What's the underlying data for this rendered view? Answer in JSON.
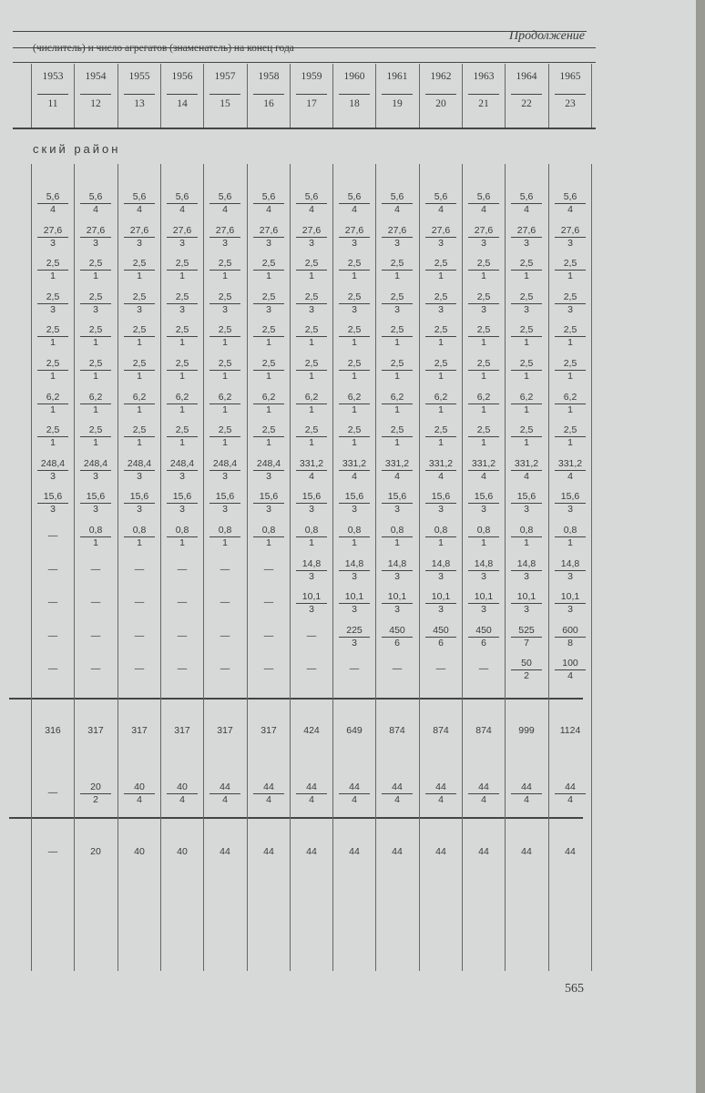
{
  "header": {
    "continuation": "Продолжение",
    "subheading": "(числитель) и число агрегатов (знаменатель) на конец года",
    "years": [
      "1953",
      "1954",
      "1955",
      "1956",
      "1957",
      "1958",
      "1959",
      "1960",
      "1961",
      "1962",
      "1963",
      "1964",
      "1965"
    ],
    "column_numbers": [
      "11",
      "12",
      "13",
      "14",
      "15",
      "16",
      "17",
      "18",
      "19",
      "20",
      "21",
      "22",
      "23"
    ]
  },
  "section_title": "ский район",
  "rows": [
    [
      [
        "5,6",
        "4"
      ],
      [
        "5,6",
        "4"
      ],
      [
        "5,6",
        "4"
      ],
      [
        "5,6",
        "4"
      ],
      [
        "5,6",
        "4"
      ],
      [
        "5,6",
        "4"
      ],
      [
        "5,6",
        "4"
      ],
      [
        "5,6",
        "4"
      ],
      [
        "5,6",
        "4"
      ],
      [
        "5,6",
        "4"
      ],
      [
        "5,6",
        "4"
      ],
      [
        "5,6",
        "4"
      ],
      [
        "5,6",
        "4"
      ]
    ],
    [
      [
        "27,6",
        "3"
      ],
      [
        "27,6",
        "3"
      ],
      [
        "27,6",
        "3"
      ],
      [
        "27,6",
        "3"
      ],
      [
        "27,6",
        "3"
      ],
      [
        "27,6",
        "3"
      ],
      [
        "27,6",
        "3"
      ],
      [
        "27,6",
        "3"
      ],
      [
        "27,6",
        "3"
      ],
      [
        "27,6",
        "3"
      ],
      [
        "27,6",
        "3"
      ],
      [
        "27,6",
        "3"
      ],
      [
        "27,6",
        "3"
      ]
    ],
    [
      [
        "2,5",
        "1"
      ],
      [
        "2,5",
        "1"
      ],
      [
        "2,5",
        "1"
      ],
      [
        "2,5",
        "1"
      ],
      [
        "2,5",
        "1"
      ],
      [
        "2,5",
        "1"
      ],
      [
        "2,5",
        "1"
      ],
      [
        "2,5",
        "1"
      ],
      [
        "2,5",
        "1"
      ],
      [
        "2,5",
        "1"
      ],
      [
        "2,5",
        "1"
      ],
      [
        "2,5",
        "1"
      ],
      [
        "2,5",
        "1"
      ]
    ],
    [
      [
        "2,5",
        "3"
      ],
      [
        "2,5",
        "3"
      ],
      [
        "2,5",
        "3"
      ],
      [
        "2,5",
        "3"
      ],
      [
        "2,5",
        "3"
      ],
      [
        "2,5",
        "3"
      ],
      [
        "2,5",
        "3"
      ],
      [
        "2,5",
        "3"
      ],
      [
        "2,5",
        "3"
      ],
      [
        "2,5",
        "3"
      ],
      [
        "2,5",
        "3"
      ],
      [
        "2,5",
        "3"
      ],
      [
        "2,5",
        "3"
      ]
    ],
    [
      [
        "2,5",
        "1"
      ],
      [
        "2,5",
        "1"
      ],
      [
        "2,5",
        "1"
      ],
      [
        "2,5",
        "1"
      ],
      [
        "2,5",
        "1"
      ],
      [
        "2,5",
        "1"
      ],
      [
        "2,5",
        "1"
      ],
      [
        "2,5",
        "1"
      ],
      [
        "2,5",
        "1"
      ],
      [
        "2,5",
        "1"
      ],
      [
        "2,5",
        "1"
      ],
      [
        "2,5",
        "1"
      ],
      [
        "2,5",
        "1"
      ]
    ],
    [
      [
        "2,5",
        "1"
      ],
      [
        "2,5",
        "1"
      ],
      [
        "2,5",
        "1"
      ],
      [
        "2,5",
        "1"
      ],
      [
        "2,5",
        "1"
      ],
      [
        "2,5",
        "1"
      ],
      [
        "2,5",
        "1"
      ],
      [
        "2,5",
        "1"
      ],
      [
        "2,5",
        "1"
      ],
      [
        "2,5",
        "1"
      ],
      [
        "2,5",
        "1"
      ],
      [
        "2,5",
        "1"
      ],
      [
        "2,5",
        "1"
      ]
    ],
    [
      [
        "6,2",
        "1"
      ],
      [
        "6,2",
        "1"
      ],
      [
        "6,2",
        "1"
      ],
      [
        "6,2",
        "1"
      ],
      [
        "6,2",
        "1"
      ],
      [
        "6,2",
        "1"
      ],
      [
        "6,2",
        "1"
      ],
      [
        "6,2",
        "1"
      ],
      [
        "6,2",
        "1"
      ],
      [
        "6,2",
        "1"
      ],
      [
        "6,2",
        "1"
      ],
      [
        "6,2",
        "1"
      ],
      [
        "6,2",
        "1"
      ]
    ],
    [
      [
        "2,5",
        "1"
      ],
      [
        "2,5",
        "1"
      ],
      [
        "2,5",
        "1"
      ],
      [
        "2,5",
        "1"
      ],
      [
        "2,5",
        "1"
      ],
      [
        "2,5",
        "1"
      ],
      [
        "2,5",
        "1"
      ],
      [
        "2,5",
        "1"
      ],
      [
        "2,5",
        "1"
      ],
      [
        "2,5",
        "1"
      ],
      [
        "2,5",
        "1"
      ],
      [
        "2,5",
        "1"
      ],
      [
        "2,5",
        "1"
      ]
    ],
    [
      [
        "248,4",
        "3"
      ],
      [
        "248,4",
        "3"
      ],
      [
        "248,4",
        "3"
      ],
      [
        "248,4",
        "3"
      ],
      [
        "248,4",
        "3"
      ],
      [
        "248,4",
        "3"
      ],
      [
        "331,2",
        "4"
      ],
      [
        "331,2",
        "4"
      ],
      [
        "331,2",
        "4"
      ],
      [
        "331,2",
        "4"
      ],
      [
        "331,2",
        "4"
      ],
      [
        "331,2",
        "4"
      ],
      [
        "331,2",
        "4"
      ]
    ],
    [
      [
        "15,6",
        "3"
      ],
      [
        "15,6",
        "3"
      ],
      [
        "15,6",
        "3"
      ],
      [
        "15,6",
        "3"
      ],
      [
        "15,6",
        "3"
      ],
      [
        "15,6",
        "3"
      ],
      [
        "15,6",
        "3"
      ],
      [
        "15,6",
        "3"
      ],
      [
        "15,6",
        "3"
      ],
      [
        "15,6",
        "3"
      ],
      [
        "15,6",
        "3"
      ],
      [
        "15,6",
        "3"
      ],
      [
        "15,6",
        "3"
      ]
    ],
    [
      "—",
      [
        "0,8",
        "1"
      ],
      [
        "0,8",
        "1"
      ],
      [
        "0,8",
        "1"
      ],
      [
        "0,8",
        "1"
      ],
      [
        "0,8",
        "1"
      ],
      [
        "0,8",
        "1"
      ],
      [
        "0,8",
        "1"
      ],
      [
        "0,8",
        "1"
      ],
      [
        "0,8",
        "1"
      ],
      [
        "0,8",
        "1"
      ],
      [
        "0,8",
        "1"
      ],
      [
        "0,8",
        "1"
      ]
    ],
    [
      "—",
      "—",
      "—",
      "—",
      "—",
      "—",
      [
        "14,8",
        "3"
      ],
      [
        "14,8",
        "3"
      ],
      [
        "14,8",
        "3"
      ],
      [
        "14,8",
        "3"
      ],
      [
        "14,8",
        "3"
      ],
      [
        "14,8",
        "3"
      ],
      [
        "14,8",
        "3"
      ]
    ],
    [
      "—",
      "—",
      "—",
      "—",
      "—",
      "—",
      [
        "10,1",
        "3"
      ],
      [
        "10,1",
        "3"
      ],
      [
        "10,1",
        "3"
      ],
      [
        "10,1",
        "3"
      ],
      [
        "10,1",
        "3"
      ],
      [
        "10,1",
        "3"
      ],
      [
        "10,1",
        "3"
      ]
    ],
    [
      "—",
      "—",
      "—",
      "—",
      "—",
      "—",
      "—",
      [
        "225",
        "3"
      ],
      [
        "450",
        "6"
      ],
      [
        "450",
        "6"
      ],
      [
        "450",
        "6"
      ],
      [
        "525",
        "7"
      ],
      [
        "600",
        "8"
      ]
    ],
    [
      "—",
      "—",
      "—",
      "—",
      "—",
      "—",
      "—",
      "—",
      "—",
      "—",
      "—",
      [
        "50",
        "2"
      ],
      [
        "100",
        "4"
      ]
    ]
  ],
  "totals": [
    "316",
    "317",
    "317",
    "317",
    "317",
    "317",
    "424",
    "649",
    "874",
    "874",
    "874",
    "999",
    "1124"
  ],
  "second_block": [
    "—",
    [
      "20",
      "2"
    ],
    [
      "40",
      "4"
    ],
    [
      "40",
      "4"
    ],
    [
      "44",
      "4"
    ],
    [
      "44",
      "4"
    ],
    [
      "44",
      "4"
    ],
    [
      "44",
      "4"
    ],
    [
      "44",
      "4"
    ],
    [
      "44",
      "4"
    ],
    [
      "44",
      "4"
    ],
    [
      "44",
      "4"
    ],
    [
      "44",
      "4"
    ]
  ],
  "last_row": [
    "—",
    "20",
    "40",
    "40",
    "44",
    "44",
    "44",
    "44",
    "44",
    "44",
    "44",
    "44",
    "44"
  ],
  "page_number": "565"
}
